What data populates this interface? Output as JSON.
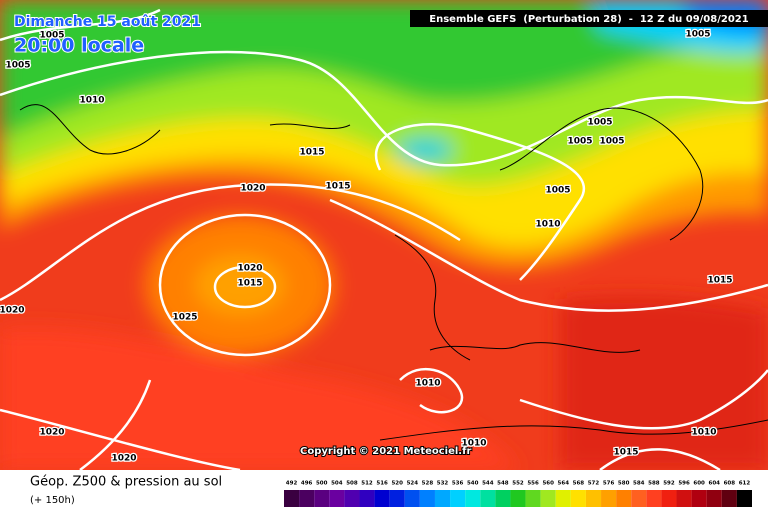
{
  "header": {
    "title": "Dimanche 15 août 2021",
    "subtitle": "20:00 locale",
    "model": "Ensemble GEFS  (Perturbation 28)  -  12 Z du 09/08/2021"
  },
  "isobar_labels": [
    1005,
    1005,
    1010,
    1015,
    1015,
    1020,
    1020,
    1015,
    1025,
    1020,
    1010,
    1010,
    1020,
    1020,
    1005,
    1005,
    1005,
    1005,
    1005,
    1010,
    1015,
    1010,
    1015
  ],
  "copyright": "Copyright © 2021 Meteociel.fr",
  "footer": {
    "title": "Géop. Z500 & pression au sol",
    "lead": "(+ 150h)"
  },
  "scale": {
    "values": [
      492,
      496,
      500,
      504,
      508,
      512,
      516,
      520,
      524,
      528,
      532,
      536,
      540,
      544,
      548,
      552,
      556,
      560,
      564,
      568,
      572,
      576,
      580,
      584,
      588,
      592,
      596,
      600,
      604,
      608,
      612
    ],
    "colors": [
      "#3a0040",
      "#4b0060",
      "#5a0080",
      "#6a00a0",
      "#5000b0",
      "#3000c0",
      "#0000d0",
      "#0020e0",
      "#0050f0",
      "#0080ff",
      "#00a8ff",
      "#00d0ff",
      "#00e8e0",
      "#00e0a0",
      "#00d060",
      "#20c820",
      "#60d820",
      "#a0e820",
      "#e0f000",
      "#ffe000",
      "#ffc000",
      "#ffa000",
      "#ff8000",
      "#ff6020",
      "#ff4020",
      "#f02010",
      "#d01010",
      "#b00010",
      "#900010",
      "#600010",
      "#000000"
    ]
  }
}
